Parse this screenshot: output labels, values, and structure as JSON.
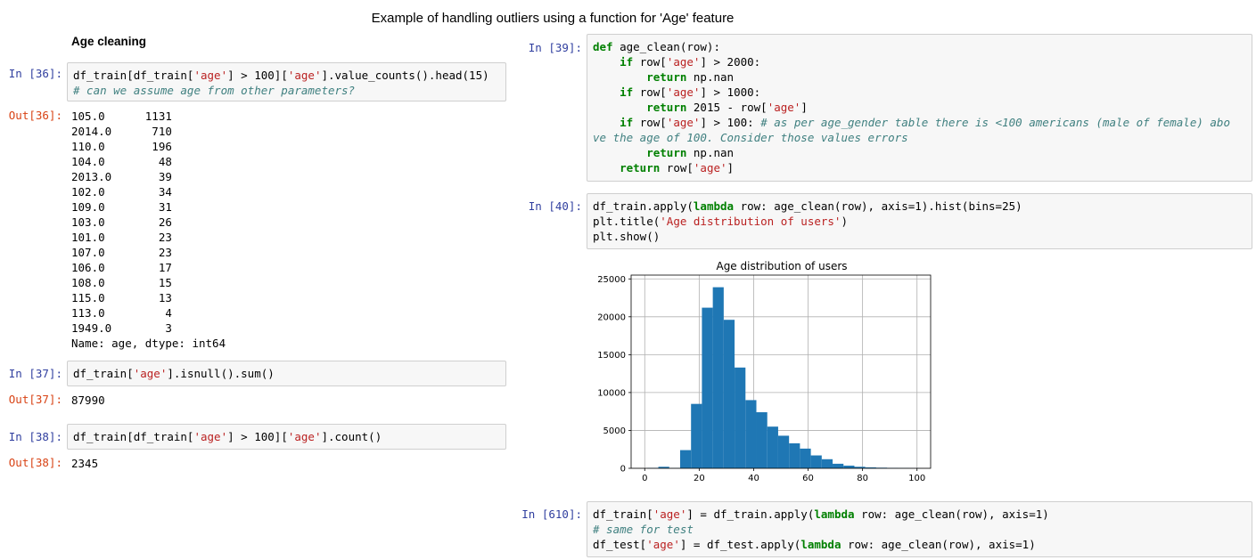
{
  "page_title": "Example of handling outliers using a function for 'Age' feature",
  "left": {
    "heading": "Age cleaning",
    "cells": [
      {
        "in_prompt": "In [36]:",
        "code_lines": [
          [
            {
              "t": "df_train[df_train["
            },
            {
              "t": "'age'",
              "c": "str"
            },
            {
              "t": "] > 100]["
            },
            {
              "t": "'age'",
              "c": "str"
            },
            {
              "t": "].value_counts().head(15)"
            }
          ],
          [
            {
              "t": "# can we assume age from other parameters?",
              "c": "com"
            }
          ]
        ],
        "out_prompt": "Out[36]:",
        "output": "105.0      1131\n2014.0      710\n110.0       196\n104.0        48\n2013.0       39\n102.0        34\n109.0        31\n103.0        26\n101.0        23\n107.0        23\n106.0        17\n108.0        15\n115.0        13\n113.0         4\n1949.0        3\nName: age, dtype: int64"
      },
      {
        "in_prompt": "In [37]:",
        "code_lines": [
          [
            {
              "t": "df_train["
            },
            {
              "t": "'age'",
              "c": "str"
            },
            {
              "t": "].isnull().sum()"
            }
          ]
        ],
        "out_prompt": "Out[37]:",
        "output": "87990"
      },
      {
        "in_prompt": "In [38]:",
        "code_lines": [
          [
            {
              "t": "df_train[df_train["
            },
            {
              "t": "'age'",
              "c": "str"
            },
            {
              "t": "] > 100]["
            },
            {
              "t": "'age'",
              "c": "str"
            },
            {
              "t": "].count()"
            }
          ]
        ],
        "out_prompt": "Out[38]:",
        "output": "2345"
      }
    ]
  },
  "right": {
    "cells": [
      {
        "in_prompt": "In [39]:",
        "code_lines": [
          [
            {
              "t": "def",
              "c": "kw"
            },
            {
              "t": " age_clean(row):"
            }
          ],
          [
            {
              "t": "    "
            },
            {
              "t": "if",
              "c": "kw"
            },
            {
              "t": " row["
            },
            {
              "t": "'age'",
              "c": "str"
            },
            {
              "t": "] > 2000:"
            }
          ],
          [
            {
              "t": "        "
            },
            {
              "t": "return",
              "c": "kw"
            },
            {
              "t": " np.nan"
            }
          ],
          [
            {
              "t": "    "
            },
            {
              "t": "if",
              "c": "kw"
            },
            {
              "t": " row["
            },
            {
              "t": "'age'",
              "c": "str"
            },
            {
              "t": "] > 1000:"
            }
          ],
          [
            {
              "t": "        "
            },
            {
              "t": "return",
              "c": "kw"
            },
            {
              "t": " 2015 - row["
            },
            {
              "t": "'age'",
              "c": "str"
            },
            {
              "t": "]"
            }
          ],
          [
            {
              "t": "    "
            },
            {
              "t": "if",
              "c": "kw"
            },
            {
              "t": " row["
            },
            {
              "t": "'age'",
              "c": "str"
            },
            {
              "t": "] > 100: "
            },
            {
              "t": "# as per age_gender table there is <100 americans (male of female) abo",
              "c": "com"
            }
          ],
          [
            {
              "t": "ve the age of 100. Consider those values errors",
              "c": "com"
            }
          ],
          [
            {
              "t": "        "
            },
            {
              "t": "return",
              "c": "kw"
            },
            {
              "t": " np.nan"
            }
          ],
          [
            {
              "t": "    "
            },
            {
              "t": "return",
              "c": "kw"
            },
            {
              "t": " row["
            },
            {
              "t": "'age'",
              "c": "str"
            },
            {
              "t": "]"
            }
          ]
        ]
      },
      {
        "in_prompt": "In [40]:",
        "code_lines": [
          [
            {
              "t": "df_train.apply("
            },
            {
              "t": "lambda",
              "c": "kw"
            },
            {
              "t": " row: age_clean(row), axis=1).hist(bins=25)"
            }
          ],
          [
            {
              "t": "plt.title("
            },
            {
              "t": "'Age distribution of users'",
              "c": "str"
            },
            {
              "t": ")"
            }
          ],
          [
            {
              "t": "plt.show()"
            }
          ]
        ]
      },
      {
        "in_prompt": "In [610]:",
        "code_lines": [
          [
            {
              "t": "df_train["
            },
            {
              "t": "'age'",
              "c": "str"
            },
            {
              "t": "] = df_train.apply("
            },
            {
              "t": "lambda",
              "c": "kw"
            },
            {
              "t": " row: age_clean(row), axis=1)"
            }
          ],
          [
            {
              "t": "# same for test",
              "c": "com"
            }
          ],
          [
            {
              "t": "df_test["
            },
            {
              "t": "'age'",
              "c": "str"
            },
            {
              "t": "] = df_test.apply("
            },
            {
              "t": "lambda",
              "c": "kw"
            },
            {
              "t": " row: age_clean(row), axis=1)"
            }
          ]
        ]
      }
    ]
  },
  "chart_data": {
    "type": "bar",
    "title": "Age distribution of users",
    "xlabel": "",
    "ylabel": "",
    "xlim": [
      -5,
      105
    ],
    "ylim": [
      0,
      25500
    ],
    "xticks": [
      0,
      20,
      40,
      60,
      80,
      100
    ],
    "yticks": [
      0,
      5000,
      10000,
      15000,
      20000,
      25000
    ],
    "grid": true,
    "bar_color": "#1f77b4",
    "bin_edges": [
      1,
      5,
      9,
      13,
      17,
      21,
      25,
      29,
      33,
      37,
      41,
      45,
      49,
      53,
      57,
      61,
      65,
      69,
      73,
      77,
      81,
      85,
      89,
      93,
      97,
      101
    ],
    "values": [
      50,
      200,
      30,
      2400,
      8500,
      21200,
      23900,
      19600,
      13300,
      9000,
      7400,
      5500,
      4300,
      3300,
      2600,
      1700,
      1200,
      600,
      350,
      200,
      120,
      80,
      50,
      30,
      20
    ]
  }
}
